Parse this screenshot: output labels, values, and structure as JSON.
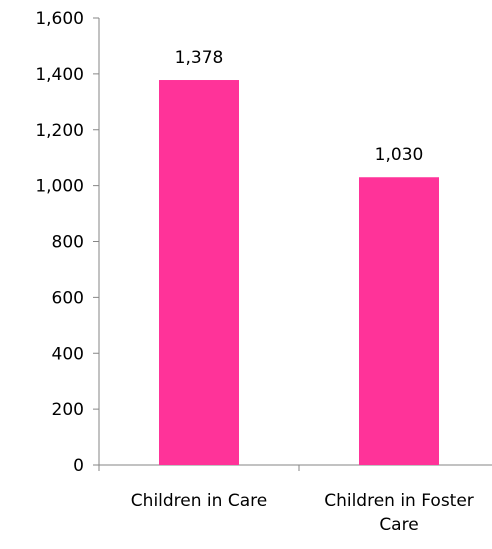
{
  "chart_data": {
    "type": "bar",
    "title": "",
    "xlabel": "",
    "ylabel": "",
    "categories": [
      [
        "Children in Care"
      ],
      [
        "Children in Foster",
        "Care"
      ]
    ],
    "values": [
      1378,
      1030
    ],
    "value_labels": [
      "1,378",
      "1,030"
    ],
    "ylim": [
      0,
      1600
    ],
    "y_ticks": [
      0,
      200,
      400,
      600,
      800,
      1000,
      1200,
      1400,
      1600
    ],
    "y_tick_labels": [
      "0",
      "200",
      "400",
      "600",
      "800",
      "1,000",
      "1,200",
      "1,400",
      "1,600"
    ],
    "grid": false,
    "legend": "none",
    "bar_color": "#ff3399",
    "axis_color": "#868686"
  }
}
